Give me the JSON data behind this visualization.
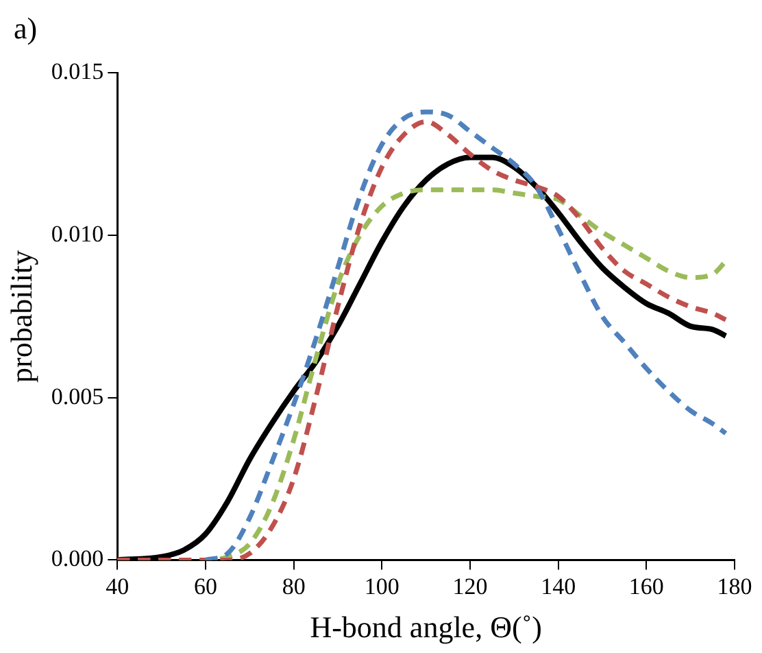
{
  "chart_data": {
    "type": "line",
    "title": "a)",
    "xlabel": "H-bond angle, Θ(˚)",
    "ylabel": "probability",
    "xlim": [
      40,
      180
    ],
    "xticks": [
      40,
      60,
      80,
      100,
      120,
      140,
      160,
      180
    ],
    "ylim": [
      0,
      0.015
    ],
    "yticks": [
      {
        "value": 0,
        "label": "0.000"
      },
      {
        "value": 0.005,
        "label": "0.005"
      },
      {
        "value": 0.01,
        "label": "0.010"
      },
      {
        "value": 0.015,
        "label": "0.015"
      }
    ],
    "grid": false,
    "legend": false,
    "marker": "none",
    "series": [
      {
        "color": "#4f81bd",
        "line_style": "dashed",
        "x": [
          60,
          65,
          70,
          75,
          80,
          85,
          90,
          95,
          100,
          105,
          110,
          115,
          120,
          125,
          130,
          135,
          140,
          145,
          150,
          155,
          160,
          165,
          170,
          175,
          178
        ],
        "values": [
          0,
          0.0002,
          0.0013,
          0.003,
          0.0048,
          0.0068,
          0.009,
          0.0112,
          0.0128,
          0.0136,
          0.0138,
          0.0137,
          0.0132,
          0.0127,
          0.0122,
          0.0115,
          0.0102,
          0.0088,
          0.0075,
          0.0067,
          0.0059,
          0.0052,
          0.0046,
          0.0042,
          0.0039
        ]
      },
      {
        "color": "#c0504d",
        "line_style": "dashed",
        "x": [
          40,
          60,
          65,
          70,
          75,
          80,
          85,
          90,
          95,
          100,
          105,
          110,
          115,
          120,
          125,
          130,
          135,
          140,
          145,
          150,
          155,
          160,
          165,
          170,
          175,
          178
        ],
        "values": [
          0,
          0,
          0,
          0.0002,
          0.001,
          0.0025,
          0.005,
          0.0078,
          0.0103,
          0.0121,
          0.0131,
          0.0135,
          0.0131,
          0.0125,
          0.012,
          0.0117,
          0.0115,
          0.0112,
          0.0105,
          0.0096,
          0.0089,
          0.0085,
          0.0081,
          0.0078,
          0.0076,
          0.0074
        ]
      },
      {
        "color": "#9bbb59",
        "line_style": "dashed",
        "x": [
          40,
          60,
          65,
          70,
          75,
          80,
          85,
          90,
          95,
          100,
          105,
          110,
          120,
          125,
          130,
          135,
          140,
          145,
          150,
          155,
          160,
          165,
          170,
          175,
          178
        ],
        "values": [
          0,
          0,
          0.0001,
          0.0005,
          0.0017,
          0.0037,
          0.0062,
          0.0085,
          0.01,
          0.0109,
          0.0113,
          0.0114,
          0.0114,
          0.0114,
          0.0113,
          0.0112,
          0.0111,
          0.0106,
          0.0101,
          0.0097,
          0.0093,
          0.0089,
          0.0087,
          0.0088,
          0.0092
        ]
      },
      {
        "color": "#000000",
        "line_style": "solid",
        "x": [
          40,
          50,
          55,
          60,
          65,
          70,
          75,
          80,
          85,
          90,
          95,
          100,
          105,
          110,
          115,
          120,
          125,
          130,
          135,
          140,
          145,
          150,
          155,
          160,
          165,
          170,
          175,
          178
        ],
        "values": [
          0,
          0.0001,
          0.0003,
          0.0008,
          0.0018,
          0.0031,
          0.0042,
          0.0052,
          0.0061,
          0.0072,
          0.0085,
          0.0098,
          0.0109,
          0.0117,
          0.0122,
          0.0124,
          0.0124,
          0.0121,
          0.0115,
          0.0107,
          0.0098,
          0.009,
          0.0084,
          0.0079,
          0.0076,
          0.0072,
          0.0071,
          0.0069
        ]
      }
    ]
  }
}
